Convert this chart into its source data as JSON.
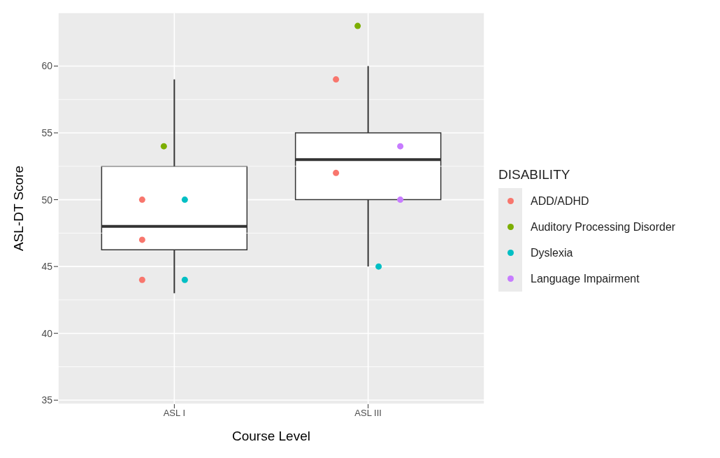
{
  "chart_data": {
    "type": "box",
    "xlabel": "Course Level",
    "ylabel": "ASL-DT Score",
    "legend_title": "DISABILITY",
    "categories": [
      "ASL I",
      "ASL III"
    ],
    "boxes": [
      {
        "low": 43,
        "q1": 46.25,
        "median": 48,
        "q3": 52.5,
        "high": 59
      },
      {
        "low": 45,
        "q1": 50,
        "median": 53,
        "q3": 55,
        "high": 60
      }
    ],
    "series": [
      {
        "type": "scatter",
        "name": "ADD/ADHD",
        "color": "#f8766d",
        "x": [
          "ASL I",
          "ASL I",
          "ASL I",
          "ASL III",
          "ASL III"
        ],
        "values": [
          50,
          47,
          44,
          59,
          52
        ]
      },
      {
        "type": "scatter",
        "name": "Auditory Processing Disorder",
        "color": "#7cae00",
        "x": [
          "ASL I",
          "ASL III"
        ],
        "values": [
          54,
          63
        ]
      },
      {
        "type": "scatter",
        "name": "Dyslexia",
        "color": "#00bfc4",
        "x": [
          "ASL I",
          "ASL I",
          "ASL III"
        ],
        "values": [
          50,
          44,
          45
        ]
      },
      {
        "type": "scatter",
        "name": "Language Impairment",
        "color": "#c77cff",
        "x": [
          "ASL III",
          "ASL III"
        ],
        "values": [
          54,
          50
        ]
      }
    ],
    "ylim": [
      34.7,
      64
    ],
    "yticks": [
      35,
      40,
      45,
      50,
      55,
      60
    ],
    "grid": true,
    "legend": "right",
    "marker": "circle"
  }
}
